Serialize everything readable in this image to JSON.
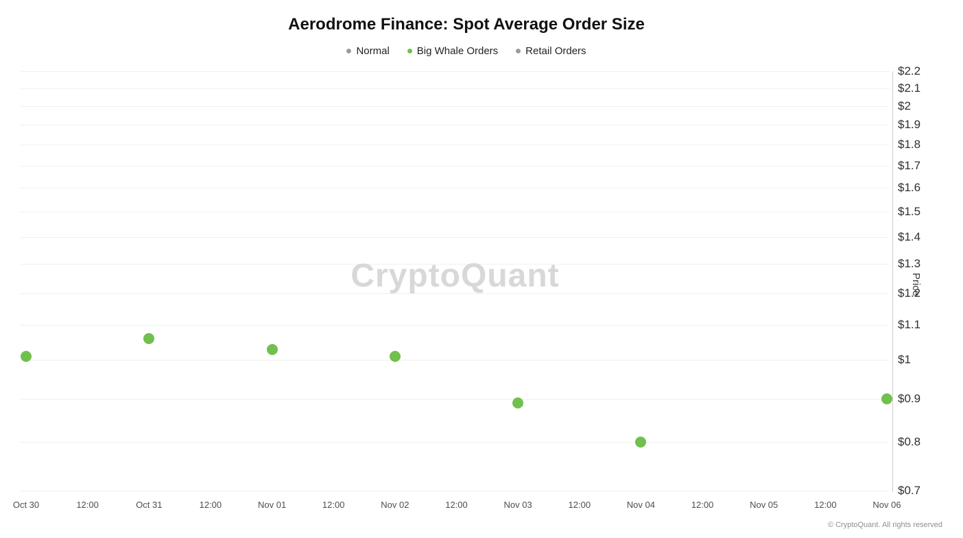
{
  "title": "Aerodrome Finance: Spot Average Order Size",
  "watermark": "CryptoQuant",
  "footer": "© CryptoQuant. All rights reserved",
  "colors": {
    "whale_green": "#71bf4c",
    "muted_gray": "#9b9b9b",
    "gridline": "#f0f0f0",
    "axis_spine": "#cccccc"
  },
  "legend": {
    "items": [
      {
        "label": "Normal",
        "color": "#9b9b9b"
      },
      {
        "label": "Big Whale Orders",
        "color": "#71bf4c"
      },
      {
        "label": "Retail Orders",
        "color": "#9b9b9b"
      }
    ]
  },
  "chart_data": {
    "type": "scatter",
    "title": "Aerodrome Finance: Spot Average Order Size",
    "xlabel": "",
    "ylabel": "Price",
    "y_scale": "log",
    "ylim": [
      0.7,
      2.2
    ],
    "grid": true,
    "legend_position": "top",
    "y_ticks": [
      "$2.2",
      "$2.1",
      "$2",
      "$1.9",
      "$1.8",
      "$1.7",
      "$1.6",
      "$1.5",
      "$1.4",
      "$1.3",
      "$1.2",
      "$1.1",
      "$1",
      "$0.9",
      "$0.8",
      "$0.7"
    ],
    "y_tick_values": [
      2.2,
      2.1,
      2.0,
      1.9,
      1.8,
      1.7,
      1.6,
      1.5,
      1.4,
      1.3,
      1.2,
      1.1,
      1.0,
      0.9,
      0.8,
      0.7
    ],
    "x_ticks": [
      "Oct 30",
      "12:00",
      "Oct 31",
      "12:00",
      "Nov 01",
      "12:00",
      "Nov 02",
      "12:00",
      "Nov 03",
      "12:00",
      "Nov 04",
      "12:00",
      "Nov 05",
      "12:00",
      "Nov 06"
    ],
    "series": [
      {
        "name": "Big Whale Orders",
        "color": "#71bf4c",
        "points": [
          {
            "x": "Oct 30",
            "y": 1.01
          },
          {
            "x": "Oct 31",
            "y": 1.06
          },
          {
            "x": "Nov 01",
            "y": 1.03
          },
          {
            "x": "Nov 02",
            "y": 1.01
          },
          {
            "x": "Nov 03",
            "y": 0.89
          },
          {
            "x": "Nov 04",
            "y": 0.8
          },
          {
            "x": "Nov 06",
            "y": 0.9
          }
        ]
      }
    ]
  }
}
